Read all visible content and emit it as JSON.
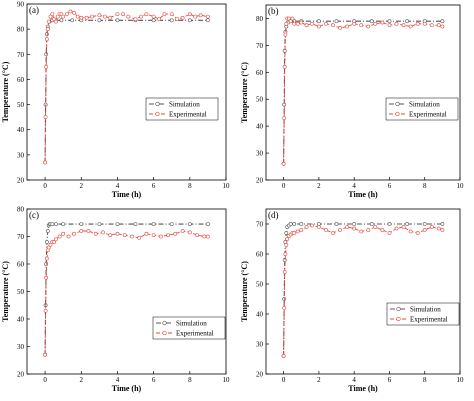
{
  "chart_data": [
    {
      "type": "line",
      "panel_label": "(a)",
      "xlabel": "Time (h)",
      "ylabel": "Temperature (°C)",
      "xlim": [
        -1,
        10
      ],
      "ylim": [
        20,
        90
      ],
      "xticks": [
        0,
        2,
        4,
        6,
        8,
        10
      ],
      "yticks": [
        20,
        30,
        40,
        50,
        60,
        70,
        80,
        90
      ],
      "grid": false,
      "legend_position": "center-right",
      "series": [
        {
          "name": "Simulation",
          "color": "#555555",
          "marker": "open-circle",
          "x": [
            0,
            0.03,
            0.06,
            0.1,
            0.15,
            0.25,
            0.4,
            0.6,
            0.9,
            1.5,
            2,
            3,
            4,
            5,
            6,
            7,
            8,
            9
          ],
          "y": [
            27,
            50,
            70,
            78,
            81,
            83,
            83.5,
            83.5,
            83.5,
            83.5,
            83.5,
            83.5,
            83.5,
            83.5,
            83.5,
            83.5,
            83.5,
            83.5
          ]
        },
        {
          "name": "Experimental",
          "color": "#e8473a",
          "marker": "open-circle",
          "x": [
            0,
            0.03,
            0.06,
            0.1,
            0.15,
            0.2,
            0.3,
            0.4,
            0.5,
            0.6,
            0.7,
            0.8,
            0.9,
            1.0,
            1.2,
            1.4,
            1.6,
            1.8,
            2.0,
            2.3,
            2.6,
            3.0,
            3.3,
            3.6,
            4.0,
            4.3,
            4.6,
            5.0,
            5.3,
            5.6,
            6.0,
            6.3,
            6.6,
            7.0,
            7.3,
            7.6,
            8.0,
            8.3,
            8.6,
            9.0
          ],
          "y": [
            27,
            45,
            65,
            76,
            80,
            83,
            85,
            86,
            84,
            83,
            85,
            86,
            86,
            85,
            86,
            87,
            86.5,
            85,
            84.5,
            84.5,
            85,
            85.5,
            85,
            84.5,
            86,
            86,
            85,
            84,
            85,
            86,
            85,
            84,
            86,
            86,
            84,
            84.5,
            86,
            85,
            85.5,
            85
          ]
        }
      ]
    },
    {
      "type": "line",
      "panel_label": "(b)",
      "xlabel": "Time (h)",
      "ylabel": "Temperature (°C)",
      "xlim": [
        -1,
        10
      ],
      "ylim": [
        20,
        85
      ],
      "xticks": [
        0,
        2,
        4,
        6,
        8,
        10
      ],
      "yticks": [
        20,
        30,
        40,
        50,
        60,
        70,
        80
      ],
      "grid": false,
      "legend_position": "center-right",
      "series": [
        {
          "name": "Simulation",
          "color": "#555555",
          "marker": "open-circle",
          "x": [
            0,
            0.03,
            0.06,
            0.1,
            0.15,
            0.25,
            0.4,
            0.6,
            1,
            2,
            3,
            4,
            5,
            6,
            7,
            8,
            9
          ],
          "y": [
            26,
            48,
            68,
            75,
            77,
            78.5,
            79,
            79,
            79,
            79,
            79,
            79,
            79,
            79,
            79,
            79,
            79
          ]
        },
        {
          "name": "Experimental",
          "color": "#e8473a",
          "marker": "open-circle",
          "x": [
            0,
            0.03,
            0.06,
            0.1,
            0.15,
            0.2,
            0.3,
            0.4,
            0.5,
            0.6,
            0.8,
            1.0,
            1.3,
            1.6,
            2.0,
            2.4,
            2.8,
            3.2,
            3.6,
            4.0,
            4.4,
            4.8,
            5.2,
            5.6,
            6.0,
            6.4,
            6.8,
            7.2,
            7.6,
            8.0,
            8.4,
            8.8,
            9.0
          ],
          "y": [
            26,
            43,
            62,
            74,
            78,
            80,
            80,
            79,
            80,
            78,
            78,
            78.5,
            77.5,
            78,
            77,
            78,
            77.5,
            76.5,
            77,
            78,
            77.5,
            77,
            78,
            78.5,
            77.5,
            78,
            77.5,
            77,
            78,
            78,
            77.5,
            77.5,
            77
          ]
        }
      ]
    },
    {
      "type": "line",
      "panel_label": "(c)",
      "xlabel": "Time (h)",
      "ylabel": "Temperature (°C)",
      "xlim": [
        -1,
        10
      ],
      "ylim": [
        20,
        80
      ],
      "xticks": [
        0,
        2,
        4,
        6,
        8,
        10
      ],
      "yticks": [
        20,
        30,
        40,
        50,
        60,
        70,
        80
      ],
      "grid": false,
      "legend_position": "lower-right",
      "series": [
        {
          "name": "Simulation",
          "color": "#555555",
          "marker": "open-circle",
          "x": [
            0,
            0.03,
            0.06,
            0.1,
            0.15,
            0.2,
            0.25,
            0.3,
            0.4,
            0.6,
            1,
            2,
            3,
            4,
            5,
            6,
            7,
            8,
            9
          ],
          "y": [
            27,
            45,
            60,
            68,
            72,
            74,
            74.5,
            74.5,
            74.5,
            74.5,
            74.5,
            74.5,
            74.5,
            74.5,
            74.5,
            74.5,
            74.5,
            74.5,
            74.5
          ]
        },
        {
          "name": "Experimental",
          "color": "#e8473a",
          "marker": "open-circle",
          "x": [
            0,
            0.03,
            0.06,
            0.1,
            0.15,
            0.2,
            0.3,
            0.4,
            0.5,
            0.6,
            0.8,
            1.0,
            1.3,
            1.6,
            2.0,
            2.4,
            2.8,
            3.2,
            3.6,
            4.0,
            4.4,
            4.8,
            5.2,
            5.6,
            6.0,
            6.4,
            6.8,
            7.2,
            7.6,
            8.0,
            8.4,
            8.8,
            9.0
          ],
          "y": [
            27,
            43,
            55,
            62,
            65,
            66,
            67,
            68,
            68,
            69,
            70,
            71,
            70,
            71,
            72,
            72,
            71,
            71.5,
            70.5,
            71,
            70.5,
            70,
            69.5,
            71,
            70.5,
            70,
            70.5,
            71,
            72,
            71.5,
            70.5,
            70,
            70
          ]
        }
      ]
    },
    {
      "type": "line",
      "panel_label": "(d)",
      "xlabel": "Time (h)",
      "ylabel": "Temperature (°C)",
      "xlim": [
        -1,
        10
      ],
      "ylim": [
        20,
        75
      ],
      "xticks": [
        0,
        2,
        4,
        6,
        8,
        10
      ],
      "yticks": [
        20,
        30,
        40,
        50,
        60,
        70
      ],
      "grid": false,
      "legend_position": "lower-right",
      "series": [
        {
          "name": "Simulation",
          "color": "#555555",
          "marker": "open-circle",
          "x": [
            0,
            0.03,
            0.06,
            0.1,
            0.15,
            0.2,
            0.3,
            0.4,
            0.6,
            1,
            2,
            3,
            4,
            5,
            6,
            7,
            8,
            9
          ],
          "y": [
            26,
            45,
            58,
            64,
            67,
            69,
            69.5,
            70,
            70,
            70,
            70,
            70,
            70,
            70,
            70,
            70,
            70,
            70
          ]
        },
        {
          "name": "Experimental",
          "color": "#e8473a",
          "marker": "open-circle",
          "x": [
            0,
            0.03,
            0.06,
            0.1,
            0.15,
            0.2,
            0.3,
            0.4,
            0.5,
            0.6,
            0.8,
            1.0,
            1.3,
            1.6,
            2.0,
            2.4,
            2.8,
            3.2,
            3.6,
            4.0,
            4.4,
            4.8,
            5.2,
            5.6,
            6.0,
            6.4,
            6.8,
            7.2,
            7.6,
            8.0,
            8.4,
            8.8,
            9.0
          ],
          "y": [
            26,
            42,
            54,
            60,
            63,
            65,
            66,
            66.5,
            67,
            67,
            67.5,
            68,
            69,
            69.5,
            69,
            68,
            67,
            68,
            69,
            68.5,
            67.5,
            68,
            69,
            68,
            67,
            68.5,
            69,
            67.5,
            67,
            68,
            69,
            68.5,
            68
          ]
        }
      ]
    }
  ]
}
